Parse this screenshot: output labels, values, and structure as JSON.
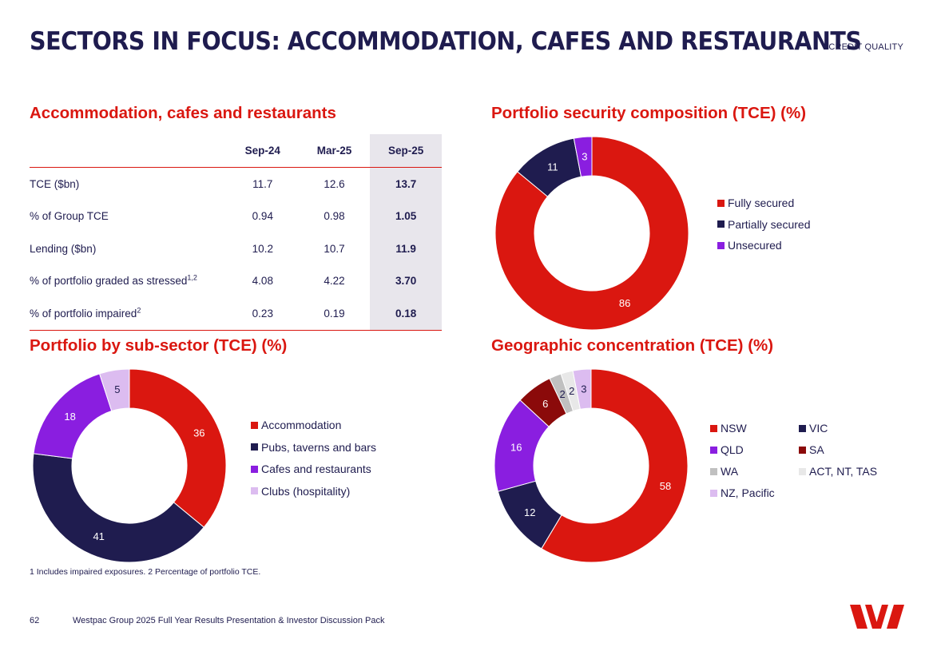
{
  "header": {
    "title": "SECTORS IN FOCUS: ACCOMMODATION, CAFES AND RESTAURANTS",
    "section_tag": "CREDIT QUALITY"
  },
  "table": {
    "heading": "Accommodation, cafes and restaurants",
    "columns": [
      "Sep-24",
      "Mar-25",
      "Sep-25"
    ],
    "rows": [
      {
        "label": "TCE ($bn)",
        "sup": "",
        "values": [
          "11.7",
          "12.6",
          "13.7"
        ]
      },
      {
        "label": "% of Group TCE",
        "sup": "",
        "values": [
          "0.94",
          "0.98",
          "1.05"
        ]
      },
      {
        "label": "Lending ($bn)",
        "sup": "",
        "values": [
          "10.2",
          "10.7",
          "11.9"
        ]
      },
      {
        "label": "% of portfolio graded as stressed",
        "sup": "1,2",
        "values": [
          "4.08",
          "4.22",
          "3.70"
        ]
      },
      {
        "label": "% of portfolio impaired",
        "sup": "2",
        "values": [
          "0.23",
          "0.19",
          "0.18"
        ]
      }
    ]
  },
  "chart_data": [
    {
      "type": "pie",
      "title": "Portfolio security composition (TCE) (%)",
      "categories": [
        "Fully secured",
        "Partially secured",
        "Unsecured"
      ],
      "values": [
        86,
        11,
        3
      ],
      "colors": [
        "#da1710",
        "#1f1c4f",
        "#8a1ee0"
      ],
      "label_colors": [
        "#ffffff",
        "#ffffff",
        "#ffffff"
      ],
      "legend": "right"
    },
    {
      "type": "pie",
      "title": "Portfolio by sub-sector (TCE) (%)",
      "categories": [
        "Accommodation",
        "Pubs, taverns and bars",
        "Cafes and restaurants",
        "Clubs (hospitality)"
      ],
      "values": [
        36,
        41,
        18,
        5
      ],
      "colors": [
        "#da1710",
        "#1f1c4f",
        "#8a1ee0",
        "#dcbcf0"
      ],
      "label_colors": [
        "#ffffff",
        "#ffffff",
        "#ffffff",
        "#1f1c4f"
      ],
      "legend": "right"
    },
    {
      "type": "pie",
      "title": "Geographic concentration (TCE) (%)",
      "categories": [
        "NSW",
        "VIC",
        "QLD",
        "SA",
        "WA",
        "ACT, NT, TAS",
        "NZ, Pacific"
      ],
      "values": [
        58,
        12,
        16,
        6,
        2,
        2,
        3
      ],
      "colors": [
        "#da1710",
        "#1f1c4f",
        "#8a1ee0",
        "#8b0a0a",
        "#c0c0c0",
        "#e8e8e8",
        "#dcbcf0"
      ],
      "label_colors": [
        "#ffffff",
        "#ffffff",
        "#ffffff",
        "#ffffff",
        "#1f1c4f",
        "#1f1c4f",
        "#1f1c4f"
      ],
      "legend": "right"
    }
  ],
  "footer": {
    "footnote": "1 Includes impaired exposures. 2 Percentage of portfolio TCE.",
    "page_number": "62",
    "text": "Westpac Group 2025 Full Year Results Presentation & Investor Discussion Pack"
  },
  "logo": {
    "color": "#da1710"
  }
}
